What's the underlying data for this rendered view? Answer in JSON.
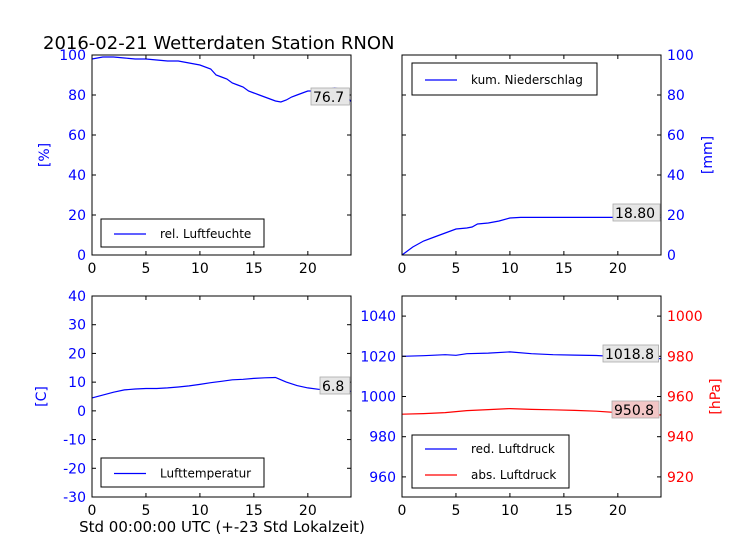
{
  "figure": {
    "title": "2016-02-21 Wetterdaten Station RNON",
    "xlabel": "Std 00:00:00 UTC (+-23 Std Lokalzeit)"
  },
  "colors": {
    "blue": "#0000ff",
    "red": "#ff0000",
    "black": "#000000",
    "label_bg": "#e6e6e6",
    "label_bg_red": "#f2c6c6"
  },
  "chart_data": [
    {
      "id": "humidity",
      "type": "line",
      "ylabel": "[%]",
      "yaxis_side": "left",
      "xlim": [
        0,
        24
      ],
      "ylim": [
        0,
        100
      ],
      "xticks": [
        0,
        5,
        10,
        15,
        20
      ],
      "yticks": [
        0,
        20,
        40,
        60,
        80,
        100
      ],
      "tick_color": "#0000ff",
      "legend": {
        "position": "lower-left",
        "entries": [
          "rel. Luftfeuchte"
        ]
      },
      "last_value_label": "76.7",
      "series": [
        {
          "name": "rel. Luftfeuchte",
          "color": "#0000ff",
          "x": [
            0,
            1,
            2,
            3,
            4,
            5,
            6,
            7,
            8,
            9,
            10,
            11,
            11.5,
            12,
            12.5,
            13,
            13.5,
            14,
            14.5,
            15,
            15.5,
            16,
            16.5,
            17,
            17.5,
            18,
            18.5,
            19,
            19.5,
            20,
            20.5,
            21,
            21.5,
            22,
            22.5,
            23,
            23.5,
            24
          ],
          "y": [
            98,
            99,
            99,
            98.5,
            98,
            98,
            97.5,
            97,
            97,
            96,
            95,
            93,
            90,
            89,
            88,
            86,
            85,
            84,
            82,
            81,
            80,
            79,
            78,
            77,
            76.5,
            77.5,
            79,
            80,
            81,
            82,
            82,
            83,
            83,
            83,
            83.5,
            83,
            80,
            76.7
          ]
        }
      ]
    },
    {
      "id": "precipitation",
      "type": "line",
      "ylabel": "[mm]",
      "yaxis_side": "right",
      "xlim": [
        0,
        24
      ],
      "ylim": [
        0,
        100
      ],
      "xticks": [
        0,
        5,
        10,
        15,
        20
      ],
      "yticks": [
        0,
        20,
        40,
        60,
        80,
        100
      ],
      "tick_color": "#0000ff",
      "legend": {
        "position": "upper-left",
        "entries": [
          "kum. Niederschlag"
        ]
      },
      "last_value_label": "18.80",
      "series": [
        {
          "name": "kum. Niederschlag",
          "color": "#0000ff",
          "x": [
            0,
            0.5,
            1,
            2,
            3,
            4,
            5,
            6,
            6.5,
            7,
            8,
            9,
            10,
            11,
            12,
            13,
            14,
            15,
            16,
            17,
            18,
            19,
            20,
            21,
            22,
            23,
            24
          ],
          "y": [
            0,
            2,
            4,
            7,
            9,
            11,
            13,
            13.5,
            14,
            15.5,
            16,
            17,
            18.5,
            18.8,
            18.8,
            18.8,
            18.8,
            18.8,
            18.8,
            18.8,
            18.8,
            18.8,
            18.8,
            18.8,
            18.8,
            18.8,
            18.8
          ]
        }
      ]
    },
    {
      "id": "temperature",
      "type": "line",
      "ylabel": "[C]",
      "yaxis_side": "left",
      "xlim": [
        0,
        24
      ],
      "ylim": [
        -30,
        40
      ],
      "xticks": [
        0,
        5,
        10,
        15,
        20
      ],
      "yticks": [
        -30,
        -20,
        -10,
        0,
        10,
        20,
        30,
        40
      ],
      "tick_color": "#0000ff",
      "legend": {
        "position": "lower-left",
        "entries": [
          "Lufttemperatur"
        ]
      },
      "last_value_label": "6.8",
      "series": [
        {
          "name": "Lufttemperatur",
          "color": "#0000ff",
          "x": [
            0,
            1,
            2,
            3,
            4,
            5,
            6,
            7,
            8,
            9,
            10,
            11,
            12,
            13,
            14,
            15,
            16,
            17,
            18,
            19,
            20,
            21,
            22,
            23,
            24
          ],
          "y": [
            4.5,
            5.5,
            6.5,
            7.3,
            7.6,
            7.8,
            7.8,
            8,
            8.3,
            8.7,
            9.2,
            9.8,
            10.3,
            10.8,
            11,
            11.3,
            11.5,
            11.6,
            10,
            8.8,
            8,
            7.5,
            7.1,
            6.9,
            6.8
          ]
        }
      ]
    },
    {
      "id": "pressure",
      "type": "line",
      "ylabel": "[hPa]",
      "yaxis_side": "right",
      "xlim": [
        0,
        24
      ],
      "ylim": [
        950,
        1050
      ],
      "ylim_right": [
        910,
        1010
      ],
      "xticks": [
        0,
        5,
        10,
        15,
        20
      ],
      "yticks": [
        960,
        980,
        1000,
        1020,
        1040
      ],
      "yticks_right": [
        920,
        940,
        960,
        980,
        1000
      ],
      "tick_color": "#0000ff",
      "tick_color_right": "#ff0000",
      "legend": {
        "position": "lower-left",
        "entries": [
          "red. Luftdruck",
          "abs. Luftdruck"
        ]
      },
      "last_value_labels": [
        "1018.8",
        "950.8"
      ],
      "series": [
        {
          "name": "red. Luftdruck",
          "color": "#0000ff",
          "axis": "left",
          "x": [
            0,
            2,
            4,
            5,
            6,
            8,
            10,
            12,
            14,
            16,
            18,
            20,
            22,
            24
          ],
          "y": [
            1020,
            1020.3,
            1020.8,
            1020.5,
            1021.3,
            1021.6,
            1022.2,
            1021.3,
            1020.8,
            1020.6,
            1020.4,
            1019.8,
            1019.2,
            1018.8
          ]
        },
        {
          "name": "abs. Luftdruck",
          "color": "#ff0000",
          "axis": "right",
          "x": [
            0,
            2,
            4,
            5,
            6,
            8,
            10,
            12,
            14,
            16,
            18,
            20,
            22,
            24
          ],
          "y": [
            951.2,
            951.5,
            952,
            952.5,
            953,
            953.5,
            954,
            953.6,
            953.4,
            953.1,
            952.7,
            952,
            951.3,
            950.8
          ]
        }
      ]
    }
  ]
}
